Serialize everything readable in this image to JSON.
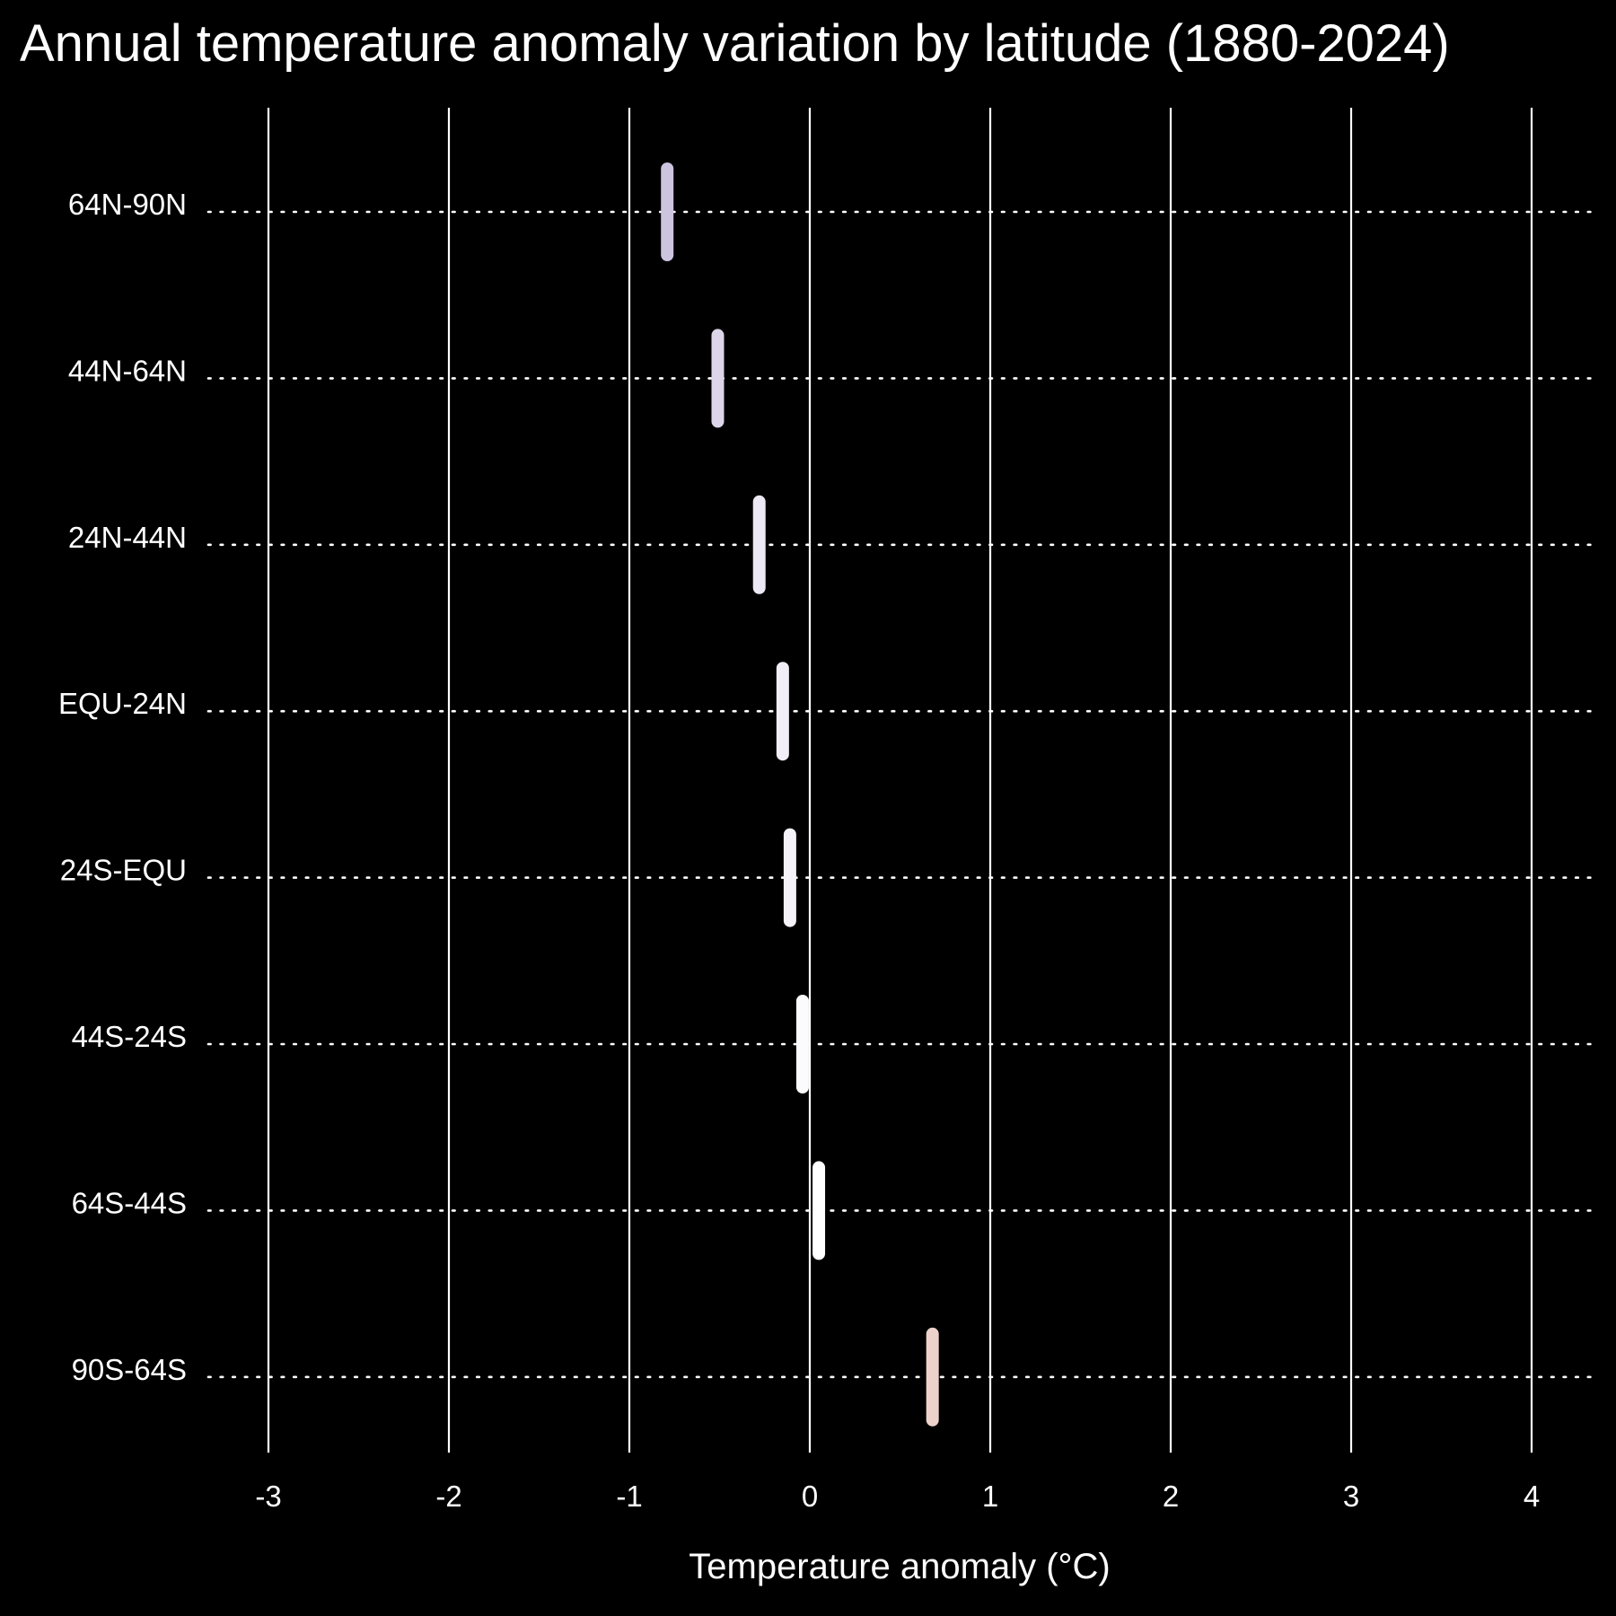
{
  "chart_data": {
    "type": "scatter",
    "title": "Annual temperature anomaly variation by latitude (1880-2024)",
    "xlabel": "Temperature anomaly (°C)",
    "ylabel": "",
    "xlim": [
      -3.2,
      4.3
    ],
    "xticks": [
      -3,
      -2,
      -1,
      0,
      1,
      2,
      3,
      4
    ],
    "grid": "vertical solid at ticks, horizontal dotted per category",
    "legend": "none",
    "categories": [
      "64N-90N",
      "44N-64N",
      "24N-44N",
      "EQU-24N",
      "24S-EQU",
      "44S-24S",
      "64S-44S",
      "90S-64S"
    ],
    "values": [
      -0.79,
      -0.51,
      -0.28,
      -0.15,
      -0.11,
      -0.04,
      0.05,
      0.68
    ],
    "colors": [
      "#cdc4e0",
      "#ddd6ea",
      "#ece8f4",
      "#f1eef7",
      "#f5f3f9",
      "#fbfafd",
      "#ffffff",
      "#edd2cb"
    ]
  },
  "colors": {
    "background": "#000000",
    "foreground": "#ffffff"
  }
}
